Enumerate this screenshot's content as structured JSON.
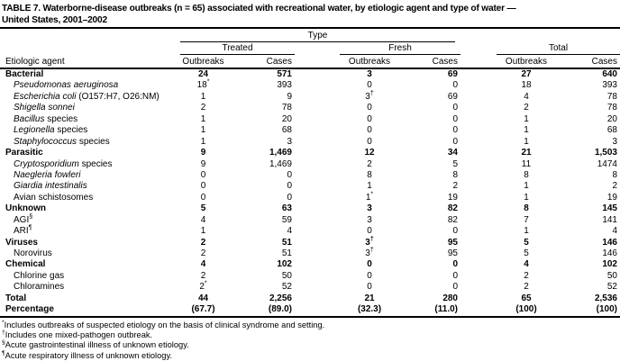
{
  "title": {
    "line1": "TABLE 7. Waterborne-disease outbreaks (n = 65) associated with recreational water, by etiologic agent and type of water —",
    "line2": "United States, 2001–2002"
  },
  "colors": {
    "text": "#000000",
    "background": "#ffffff",
    "rule": "#000000"
  },
  "table": {
    "header": {
      "agent": "Etiologic agent",
      "type_label": "Type",
      "groups": [
        {
          "label": "Treated"
        },
        {
          "label": "Fresh"
        },
        {
          "label": "Total"
        }
      ],
      "columns": [
        "Outbreaks",
        "Cases"
      ]
    },
    "rows": [
      {
        "bold": true,
        "label": [
          {
            "t": "Bacterial"
          }
        ],
        "cells": [
          "24",
          "571",
          "3",
          "69",
          "27",
          "640"
        ]
      },
      {
        "indent": true,
        "label": [
          {
            "t": "Pseudomonas aeruginosa",
            "i": true
          }
        ],
        "cells": [
          "18*",
          "393",
          "0",
          "0",
          "18",
          "393"
        ]
      },
      {
        "indent": true,
        "label": [
          {
            "t": "Escherichia coli",
            "i": true
          },
          {
            "t": " (O157:H7, O26:NM)"
          }
        ],
        "cells": [
          "1",
          "9",
          "3†",
          "69",
          "4",
          "78"
        ]
      },
      {
        "indent": true,
        "label": [
          {
            "t": "Shigella sonnei",
            "i": true
          }
        ],
        "cells": [
          "2",
          "78",
          "0",
          "0",
          "2",
          "78"
        ]
      },
      {
        "indent": true,
        "label": [
          {
            "t": "Bacillus",
            "i": true
          },
          {
            "t": " species"
          }
        ],
        "cells": [
          "1",
          "20",
          "0",
          "0",
          "1",
          "20"
        ]
      },
      {
        "indent": true,
        "label": [
          {
            "t": "Legionella",
            "i": true
          },
          {
            "t": " species"
          }
        ],
        "cells": [
          "1",
          "68",
          "0",
          "0",
          "1",
          "68"
        ]
      },
      {
        "indent": true,
        "label": [
          {
            "t": "Staphylococcus",
            "i": true
          },
          {
            "t": " species"
          }
        ],
        "cells": [
          "1",
          "3",
          "0",
          "0",
          "1",
          "3"
        ]
      },
      {
        "bold": true,
        "label": [
          {
            "t": "Parasitic"
          }
        ],
        "cells": [
          "9",
          "1,469",
          "12",
          "34",
          "21",
          "1,503"
        ]
      },
      {
        "indent": true,
        "label": [
          {
            "t": "Cryptosporidium",
            "i": true
          },
          {
            "t": " species"
          }
        ],
        "cells": [
          "9",
          "1,469",
          "2",
          "5",
          "11",
          "1474"
        ]
      },
      {
        "indent": true,
        "label": [
          {
            "t": "Naegleria fowleri",
            "i": true
          }
        ],
        "cells": [
          "0",
          "0",
          "8",
          "8",
          "8",
          "8"
        ]
      },
      {
        "indent": true,
        "label": [
          {
            "t": "Giardia intestinalis",
            "i": true
          }
        ],
        "cells": [
          "0",
          "0",
          "1",
          "2",
          "1",
          "2"
        ]
      },
      {
        "indent": true,
        "label": [
          {
            "t": "Avian schistosomes"
          }
        ],
        "cells": [
          "0",
          "0",
          "1*",
          "19",
          "1",
          "19"
        ]
      },
      {
        "bold": true,
        "label": [
          {
            "t": "Unknown"
          }
        ],
        "cells": [
          "5",
          "63",
          "3",
          "82",
          "8",
          "145"
        ]
      },
      {
        "indent": true,
        "label": [
          {
            "t": "AGI"
          },
          {
            "t": "§",
            "sup": true
          }
        ],
        "cells": [
          "4",
          "59",
          "3",
          "82",
          "7",
          "141"
        ]
      },
      {
        "indent": true,
        "label": [
          {
            "t": "ARI"
          },
          {
            "t": "¶",
            "sup": true
          }
        ],
        "cells": [
          "1",
          "4",
          "0",
          "0",
          "1",
          "4"
        ]
      },
      {
        "bold": true,
        "label": [
          {
            "t": "Viruses"
          }
        ],
        "cells": [
          "2",
          "51",
          "3†",
          "95",
          "5",
          "146"
        ]
      },
      {
        "indent": true,
        "label": [
          {
            "t": "Norovirus"
          }
        ],
        "cells": [
          "2",
          "51",
          "3†",
          "95",
          "5",
          "146"
        ]
      },
      {
        "bold": true,
        "label": [
          {
            "t": "Chemical"
          }
        ],
        "cells": [
          "4",
          "102",
          "0",
          "0",
          "4",
          "102"
        ]
      },
      {
        "indent": true,
        "label": [
          {
            "t": "Chlorine gas"
          }
        ],
        "cells": [
          "2",
          "50",
          "0",
          "0",
          "2",
          "50"
        ]
      },
      {
        "indent": true,
        "label": [
          {
            "t": "Chloramines"
          }
        ],
        "cells": [
          "2*",
          "52",
          "0",
          "0",
          "2",
          "52"
        ]
      },
      {
        "bold": true,
        "label": [
          {
            "t": "Total"
          }
        ],
        "cells": [
          "44",
          "2,256",
          "21",
          "280",
          "65",
          "2,536"
        ]
      },
      {
        "bold": true,
        "label": [
          {
            "t": "Percentage"
          }
        ],
        "cells": [
          "(67.7)",
          "(89.0)",
          "(32.3)",
          "(11.0)",
          "(100)",
          "(100)"
        ]
      }
    ]
  },
  "footnotes": [
    {
      "marker": "*",
      "text": "Includes outbreaks of suspected etiology on the basis of clinical syndrome and setting."
    },
    {
      "marker": "†",
      "text": "Includes one mixed-pathogen outbreak."
    },
    {
      "marker": "§",
      "text": "Acute gastrointestinal illness of unknown etiology."
    },
    {
      "marker": "¶",
      "text": "Acute respiratory illness of unknown etiology."
    }
  ]
}
